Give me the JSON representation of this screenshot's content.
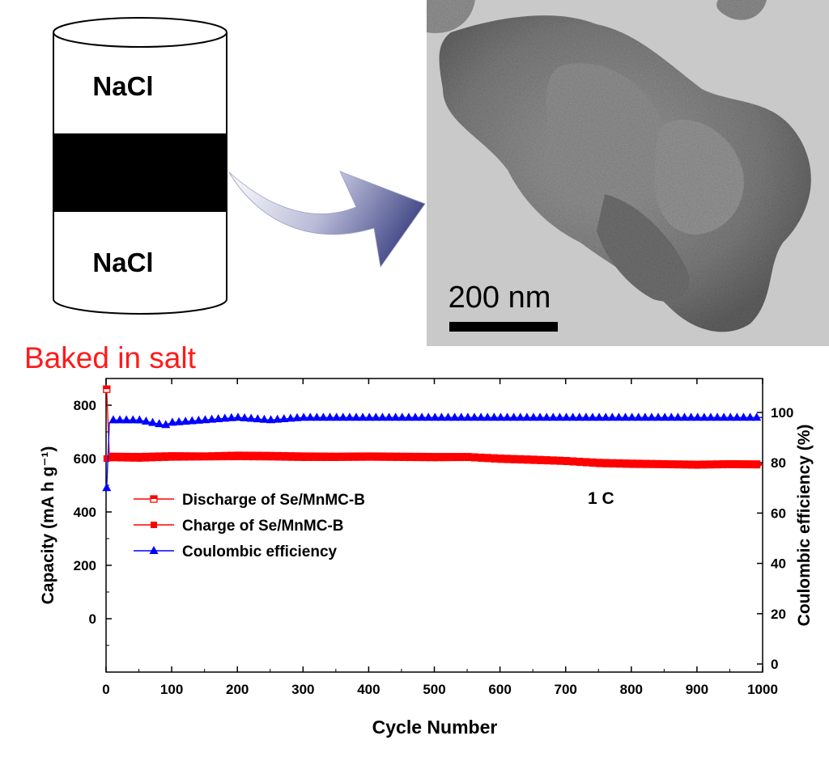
{
  "schematic": {
    "top_label": "NaCl",
    "bottom_label": "NaCl",
    "caption": "Baked in salt",
    "caption_color": "#ff1a1a"
  },
  "micrograph": {
    "scale_bar_label": "200 nm"
  },
  "chart_data": {
    "type": "line",
    "title": "",
    "xlabel": "Cycle Number",
    "ylabel_left": "Capacity (mA h g⁻¹)",
    "ylabel_right": "Coulombic efficiency (%)",
    "xlim": [
      0,
      1000
    ],
    "ylim_left": [
      -200,
      900
    ],
    "ylim_right": [
      0,
      100
    ],
    "x_ticks": [
      0,
      100,
      200,
      300,
      400,
      500,
      600,
      700,
      800,
      900,
      1000
    ],
    "y_left_ticks": [
      0,
      200,
      400,
      600,
      800
    ],
    "y_right_ticks": [
      0,
      20,
      40,
      60,
      80,
      100
    ],
    "annotation": "1 C",
    "legend_position": "center-left",
    "series": [
      {
        "name": "Discharge of Se/MnMC-B",
        "axis": "left",
        "color": "#ff0000",
        "marker": "half-filled-square",
        "x": [
          1,
          5,
          10,
          50,
          100,
          150,
          200,
          250,
          300,
          350,
          400,
          450,
          500,
          550,
          600,
          650,
          700,
          750,
          800,
          850,
          900,
          950,
          1000
        ],
        "y": [
          860,
          610,
          608,
          607,
          610,
          609,
          612,
          611,
          609,
          608,
          609,
          608,
          607,
          607,
          601,
          597,
          592,
          585,
          582,
          580,
          578,
          580,
          579
        ]
      },
      {
        "name": "Charge of Se/MnMC-B",
        "axis": "left",
        "color": "#ff0000",
        "marker": "filled-square",
        "x": [
          1,
          5,
          10,
          50,
          100,
          150,
          200,
          250,
          300,
          350,
          400,
          450,
          500,
          550,
          600,
          650,
          700,
          750,
          800,
          850,
          900,
          950,
          1000
        ],
        "y": [
          600,
          603,
          602,
          600,
          604,
          605,
          606,
          605,
          603,
          603,
          604,
          603,
          602,
          603,
          596,
          592,
          588,
          580,
          577,
          576,
          574,
          576,
          575
        ]
      },
      {
        "name": "Coulombic efficiency",
        "axis": "right",
        "color": "#0000ff",
        "marker": "filled-triangle",
        "x": [
          1,
          5,
          10,
          50,
          90,
          100,
          150,
          200,
          250,
          300,
          350,
          400,
          450,
          500,
          550,
          600,
          650,
          700,
          750,
          800,
          850,
          900,
          950,
          1000
        ],
        "y": [
          70,
          96,
          97,
          97,
          95,
          96,
          97,
          98,
          97,
          98,
          98,
          98,
          98,
          98,
          98,
          98,
          98,
          98,
          98,
          98,
          98,
          98,
          98,
          98
        ]
      }
    ]
  }
}
